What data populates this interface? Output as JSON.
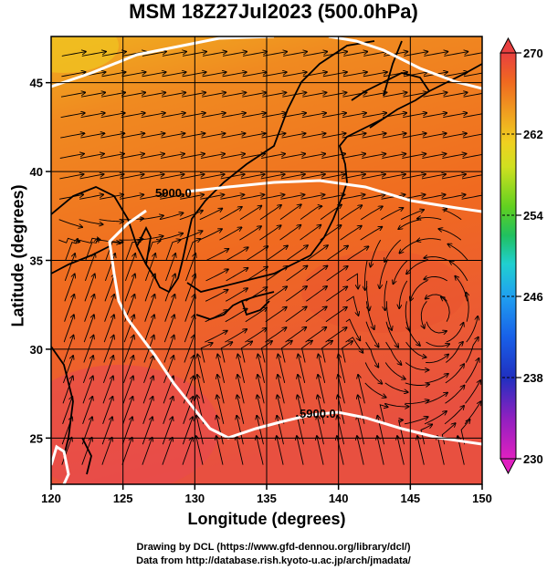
{
  "title": "MSM 18Z27Jul2023 (500.0hPa)",
  "xlabel": "Longitude (degrees)",
  "ylabel": "Latitude  (degrees)",
  "credits": {
    "line1": "Drawing by DCL (https://www.gfd-dennou.org/library/dcl/)",
    "line2": "Data from http://database.rish.kyoto-u.ac.jp/arch/jmadata/"
  },
  "chart_data": {
    "type": "heatmap",
    "variable": "temperature (K) with wind streamlines",
    "xlim": [
      120,
      150
    ],
    "ylim": [
      22.4,
      47.6
    ],
    "xticks": [
      120,
      125,
      130,
      135,
      140,
      145,
      150
    ],
    "yticks": [
      25,
      30,
      35,
      40,
      45
    ],
    "colorbar": {
      "min": 230,
      "max": 270,
      "ticks": [
        230,
        238,
        246,
        254,
        262,
        270
      ],
      "colors": [
        "#e020c0",
        "#9020c0",
        "#2030c0",
        "#1860e8",
        "#20a0f0",
        "#20d0d0",
        "#20c060",
        "#60d020",
        "#d0e020",
        "#f0d020",
        "#f0a020",
        "#f06820",
        "#e84040"
      ]
    },
    "contours": [
      {
        "label": "5900.0",
        "lon": 135.0,
        "lat": 39.7
      },
      {
        "label": "5900.0",
        "lon": 139.0,
        "lat": 24.2
      }
    ]
  }
}
